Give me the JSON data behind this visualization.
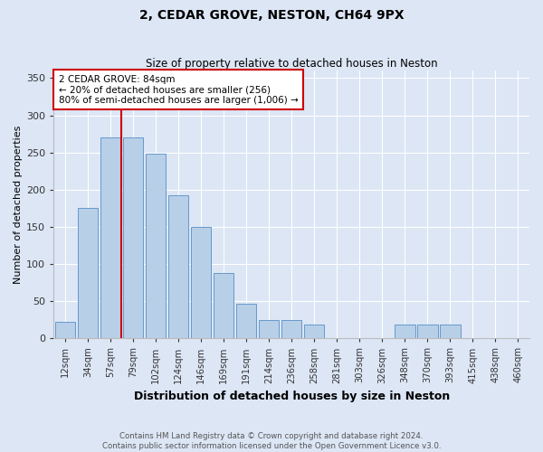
{
  "title": "2, CEDAR GROVE, NESTON, CH64 9PX",
  "subtitle": "Size of property relative to detached houses in Neston",
  "xlabel": "Distribution of detached houses by size in Neston",
  "ylabel": "Number of detached properties",
  "footer_line1": "Contains HM Land Registry data © Crown copyright and database right 2024.",
  "footer_line2": "Contains public sector information licensed under the Open Government Licence v3.0.",
  "bar_color": "#b8cfe8",
  "bar_edge_color": "#6699cc",
  "annotation_line_color": "#cc0000",
  "annotation_box_color": "#cc0000",
  "fig_background": "#dce6f5",
  "ax_background": "#dce6f5",
  "grid_color": "#ffffff",
  "categories": [
    "12sqm",
    "34sqm",
    "57sqm",
    "79sqm",
    "102sqm",
    "124sqm",
    "146sqm",
    "169sqm",
    "191sqm",
    "214sqm",
    "236sqm",
    "258sqm",
    "281sqm",
    "303sqm",
    "326sqm",
    "348sqm",
    "370sqm",
    "393sqm",
    "415sqm",
    "438sqm",
    "460sqm"
  ],
  "values": [
    22,
    175,
    270,
    270,
    248,
    192,
    150,
    88,
    46,
    25,
    25,
    18,
    0,
    0,
    0,
    18,
    18,
    18,
    0,
    0,
    0
  ],
  "ylim": [
    0,
    360
  ],
  "yticks": [
    0,
    50,
    100,
    150,
    200,
    250,
    300,
    350
  ],
  "annotation_text": "2 CEDAR GROVE: 84sqm\n← 20% of detached houses are smaller (256)\n80% of semi-detached houses are larger (1,006) →",
  "property_bin_index": 3,
  "red_line_color": "#cc0000"
}
